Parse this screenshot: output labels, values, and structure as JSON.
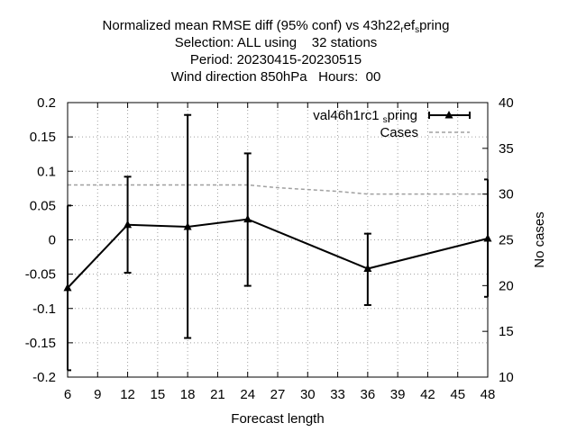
{
  "chart_data": {
    "type": "line",
    "title_lines": [
      {
        "main": "Normalized mean RMSE diff (95% conf) vs 43h22",
        "sub1": "r",
        "mid": "ef",
        "sub2": "s",
        "tail": "pring"
      },
      {
        "text": "Selection: ALL using    32 stations"
      },
      {
        "text": "Period: 20230415-20230515"
      },
      {
        "text": "Wind direction 850hPa   Hours:  00"
      }
    ],
    "xlabel": "Forecast length",
    "ylabel_right": "No cases",
    "xlim": [
      6,
      48
    ],
    "ylim": [
      -0.2,
      0.2
    ],
    "y2lim": [
      10,
      40
    ],
    "x_ticks": [
      "6",
      "9",
      "12",
      "15",
      "18",
      "21",
      "24",
      "27",
      "30",
      "33",
      "36",
      "39",
      "42",
      "45",
      "48"
    ],
    "y_ticks": [
      "0.2",
      "0.15",
      "0.1",
      "0.05",
      "0",
      "-0.05",
      "-0.1",
      "-0.15",
      "-0.2"
    ],
    "y2_ticks": [
      "40",
      "35",
      "30",
      "25",
      "20",
      "15",
      "10"
    ],
    "legend_position": "top-right",
    "grid": true,
    "series": [
      {
        "name": "val46h1rc1",
        "name_sub": "s",
        "name_tail": "pring",
        "color": "#000000",
        "axis": "left",
        "style": "line-triangle-errorbars",
        "x": [
          6,
          12,
          18,
          24,
          36,
          48
        ],
        "y": [
          -0.07,
          0.022,
          0.019,
          0.03,
          -0.042,
          0.002
        ],
        "err_low": [
          -0.19,
          -0.048,
          -0.143,
          -0.067,
          -0.095,
          -0.083
        ],
        "err_high": [
          0.05,
          0.092,
          0.182,
          0.126,
          0.009,
          0.088
        ]
      },
      {
        "name": "Cases",
        "color": "#a0a0a0",
        "axis": "right",
        "style": "dashed",
        "x": [
          6,
          12,
          18,
          24,
          27,
          30,
          33,
          36,
          39,
          42,
          45,
          48
        ],
        "y": [
          31,
          31,
          31,
          31,
          30.7,
          30.5,
          30.3,
          30,
          30,
          30,
          30,
          30
        ]
      }
    ]
  }
}
